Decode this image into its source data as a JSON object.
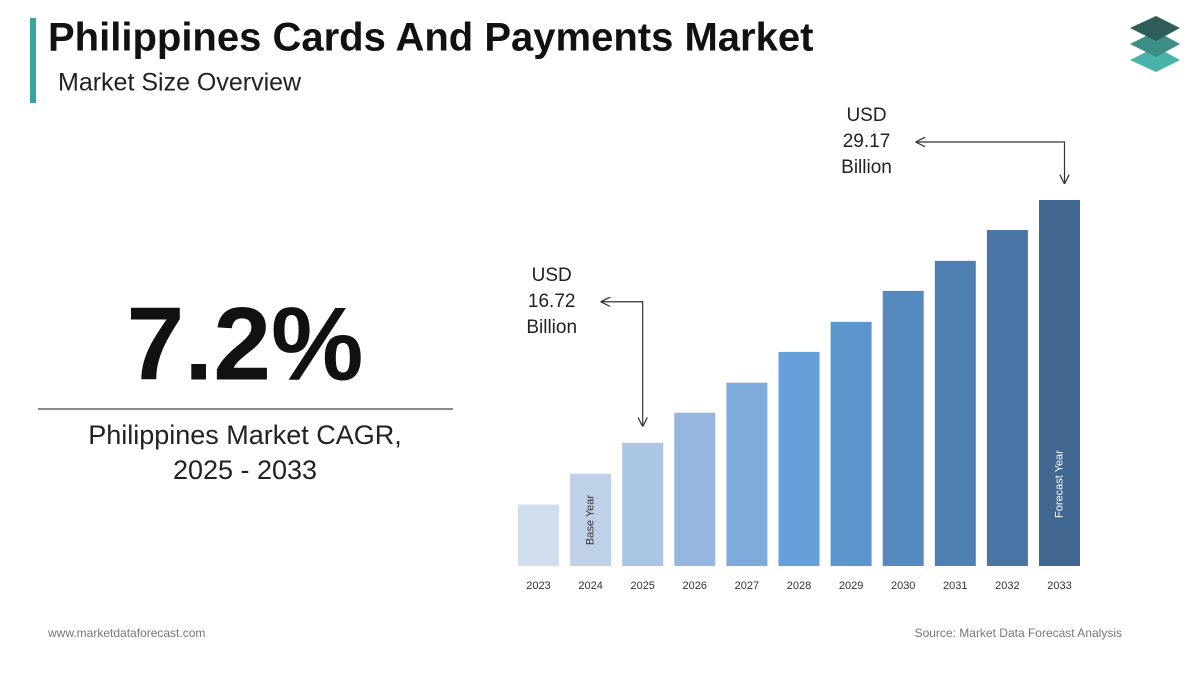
{
  "header": {
    "title": "Philippines Cards And Payments Market",
    "subtitle": "Market Size Overview"
  },
  "highlight": {
    "value": "7.2%",
    "caption": [
      "Philippines Market CAGR,",
      "2025 - 2033"
    ]
  },
  "footer": {
    "website": "www.marketdataforecast.com",
    "source": "Source: Market Data Forecast Analysis"
  },
  "chart_data": {
    "type": "bar",
    "categories": [
      "2023",
      "2024",
      "2025",
      "2026",
      "2027",
      "2028",
      "2029",
      "2030",
      "2031",
      "2032",
      "2033"
    ],
    "values": [
      13.55,
      15.13,
      16.72,
      18.26,
      19.8,
      21.38,
      22.92,
      24.51,
      26.05,
      27.63,
      29.17
    ],
    "value_labels": [
      null,
      null,
      "USD 16.72 Billion",
      null,
      null,
      null,
      null,
      null,
      null,
      null,
      "USD 29.17 Billion"
    ],
    "bar_notes": [
      null,
      "Base Year",
      null,
      null,
      null,
      null,
      null,
      null,
      null,
      null,
      "Forecast Year"
    ],
    "colors": [
      "#d0ddec",
      "#bfd1e8",
      "#abc5e4",
      "#94b6df",
      "#7eaadc",
      "#65a0da",
      "#5c96cf",
      "#5589c0",
      "#4f80b4",
      "#4a74a3",
      "#416891"
    ],
    "ylim": [
      10.4,
      29.17
    ]
  }
}
